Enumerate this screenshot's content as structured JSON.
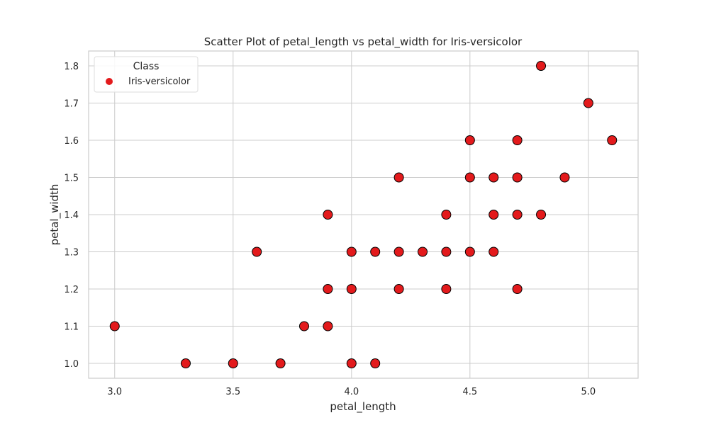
{
  "chart_data": {
    "type": "scatter",
    "title": "Scatter Plot of petal_length vs petal_width for Iris-versicolor",
    "xlabel": "petal_length",
    "ylabel": "petal_width",
    "xlim": [
      2.89,
      5.21
    ],
    "ylim": [
      0.96,
      1.84
    ],
    "xticks": [
      "3.0",
      "3.5",
      "4.0",
      "4.5",
      "5.0"
    ],
    "xtick_values": [
      3.0,
      3.5,
      4.0,
      4.5,
      5.0
    ],
    "yticks": [
      "1.0",
      "1.1",
      "1.2",
      "1.3",
      "1.4",
      "1.5",
      "1.6",
      "1.7",
      "1.8"
    ],
    "ytick_values": [
      1.0,
      1.1,
      1.2,
      1.3,
      1.4,
      1.5,
      1.6,
      1.7,
      1.8
    ],
    "grid": true,
    "legend": {
      "title": "Class",
      "placement": "top-left",
      "entries": [
        "Iris-versicolor"
      ]
    },
    "series": [
      {
        "name": "Iris-versicolor",
        "color": "#e31a1c",
        "edgecolor": "#000000",
        "points": [
          [
            3.0,
            1.1
          ],
          [
            3.3,
            1.0
          ],
          [
            3.5,
            1.0
          ],
          [
            3.6,
            1.3
          ],
          [
            3.7,
            1.0
          ],
          [
            3.8,
            1.1
          ],
          [
            3.9,
            1.1
          ],
          [
            3.9,
            1.2
          ],
          [
            3.9,
            1.4
          ],
          [
            4.0,
            1.0
          ],
          [
            4.0,
            1.2
          ],
          [
            4.0,
            1.3
          ],
          [
            4.1,
            1.0
          ],
          [
            4.1,
            1.3
          ],
          [
            4.2,
            1.2
          ],
          [
            4.2,
            1.3
          ],
          [
            4.2,
            1.5
          ],
          [
            4.3,
            1.3
          ],
          [
            4.4,
            1.2
          ],
          [
            4.4,
            1.3
          ],
          [
            4.4,
            1.4
          ],
          [
            4.5,
            1.3
          ],
          [
            4.5,
            1.5
          ],
          [
            4.5,
            1.6
          ],
          [
            4.6,
            1.3
          ],
          [
            4.6,
            1.4
          ],
          [
            4.6,
            1.5
          ],
          [
            4.7,
            1.2
          ],
          [
            4.7,
            1.4
          ],
          [
            4.7,
            1.5
          ],
          [
            4.7,
            1.6
          ],
          [
            4.8,
            1.4
          ],
          [
            4.8,
            1.8
          ],
          [
            4.9,
            1.5
          ],
          [
            5.0,
            1.7
          ],
          [
            5.1,
            1.6
          ]
        ]
      }
    ]
  }
}
